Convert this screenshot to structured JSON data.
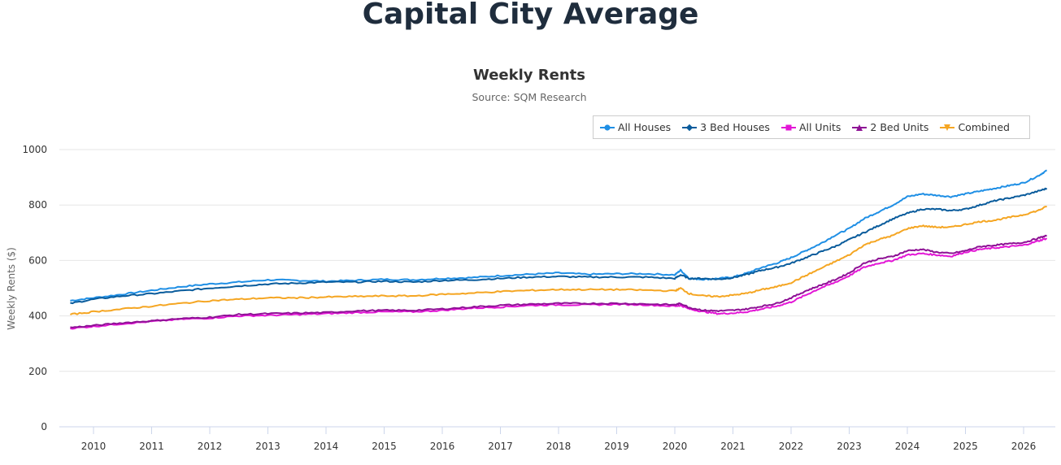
{
  "page": {
    "title": "Capital City Average"
  },
  "chart_data": {
    "type": "line",
    "title": "Weekly Rents",
    "subtitle": "Source: SQM Research",
    "xlabel": "",
    "ylabel": "Weekly Rents ($)",
    "ylim": [
      0,
      1000
    ],
    "yticks": [
      "0",
      "200",
      "400",
      "600",
      "800",
      "1000"
    ],
    "xticks": [
      "2010",
      "2011",
      "2012",
      "2013",
      "2014",
      "2015",
      "2016",
      "2017",
      "2018",
      "2019",
      "2020",
      "2021",
      "2022",
      "2023",
      "2024",
      "2025",
      "2026"
    ],
    "grid": true,
    "legend_position": "top-right",
    "x": [
      2009.6,
      2010.0,
      2010.5,
      2011.0,
      2011.5,
      2012.0,
      2012.5,
      2013.0,
      2013.5,
      2014.0,
      2014.5,
      2015.0,
      2015.5,
      2016.0,
      2016.5,
      2017.0,
      2017.5,
      2018.0,
      2018.5,
      2019.0,
      2019.5,
      2020.0,
      2020.1,
      2020.25,
      2020.5,
      2020.75,
      2021.0,
      2021.25,
      2021.5,
      2021.75,
      2022.0,
      2022.25,
      2022.5,
      2022.75,
      2023.0,
      2023.25,
      2023.5,
      2023.75,
      2024.0,
      2024.25,
      2024.5,
      2024.75,
      2025.0,
      2025.25,
      2025.5,
      2025.75,
      2026.0,
      2026.25,
      2026.4
    ],
    "series": [
      {
        "name": "All Houses",
        "color": "#1f8fe5",
        "marker": "circle",
        "values": [
          455,
          465,
          478,
          492,
          505,
          515,
          522,
          530,
          528,
          525,
          528,
          532,
          530,
          535,
          538,
          545,
          550,
          555,
          550,
          552,
          552,
          548,
          565,
          535,
          532,
          535,
          540,
          555,
          575,
          590,
          610,
          635,
          660,
          690,
          715,
          750,
          775,
          800,
          830,
          840,
          835,
          830,
          840,
          850,
          860,
          870,
          880,
          905,
          925
        ]
      },
      {
        "name": "3 Bed Houses",
        "color": "#0a5c9c",
        "marker": "diamond",
        "values": [
          445,
          460,
          472,
          480,
          490,
          500,
          508,
          515,
          518,
          522,
          522,
          525,
          522,
          528,
          530,
          535,
          540,
          542,
          540,
          540,
          540,
          535,
          548,
          535,
          535,
          532,
          538,
          550,
          565,
          575,
          590,
          610,
          630,
          650,
          675,
          700,
          725,
          750,
          770,
          785,
          785,
          780,
          785,
          800,
          815,
          825,
          835,
          850,
          860
        ]
      },
      {
        "name": "All Units",
        "color": "#e316d6",
        "marker": "square",
        "values": [
          355,
          362,
          372,
          380,
          388,
          392,
          400,
          402,
          405,
          408,
          412,
          415,
          415,
          420,
          428,
          432,
          438,
          440,
          440,
          442,
          440,
          435,
          438,
          425,
          415,
          408,
          410,
          415,
          425,
          435,
          450,
          475,
          500,
          520,
          545,
          575,
          590,
          600,
          620,
          625,
          620,
          615,
          630,
          640,
          645,
          650,
          655,
          670,
          680
        ]
      },
      {
        "name": "2 Bed Units",
        "color": "#8e1195",
        "marker": "triangle",
        "values": [
          358,
          365,
          375,
          382,
          390,
          395,
          405,
          408,
          410,
          412,
          418,
          420,
          420,
          425,
          432,
          438,
          442,
          445,
          445,
          445,
          443,
          440,
          445,
          430,
          420,
          418,
          420,
          425,
          435,
          445,
          465,
          490,
          510,
          530,
          555,
          590,
          605,
          615,
          635,
          640,
          630,
          625,
          635,
          650,
          655,
          660,
          665,
          680,
          690
        ]
      },
      {
        "name": "Combined",
        "color": "#f5a623",
        "marker": "triangle-down",
        "values": [
          405,
          415,
          425,
          435,
          445,
          455,
          460,
          465,
          465,
          468,
          470,
          472,
          472,
          478,
          482,
          488,
          492,
          495,
          495,
          495,
          493,
          490,
          500,
          480,
          472,
          470,
          475,
          482,
          495,
          505,
          520,
          545,
          570,
          595,
          620,
          655,
          675,
          690,
          715,
          725,
          720,
          720,
          730,
          740,
          745,
          755,
          765,
          780,
          795
        ]
      }
    ]
  }
}
